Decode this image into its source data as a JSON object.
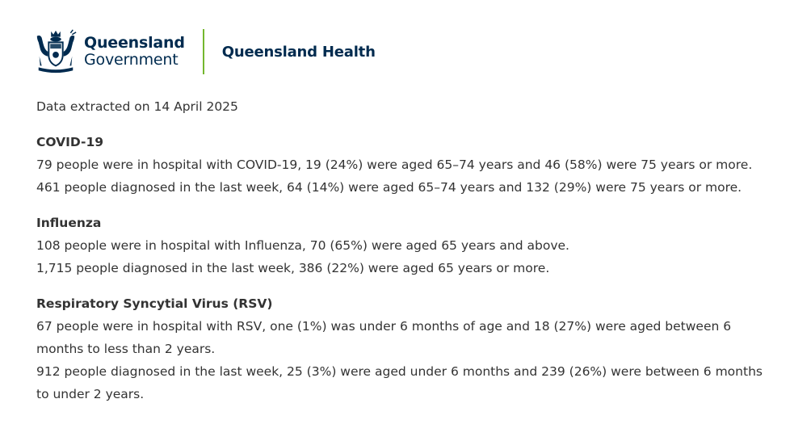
{
  "header": {
    "crest_icon": "queensland-coat-of-arms-icon",
    "gov_line1": "Queensland",
    "gov_line2": "Government",
    "department": "Queensland Health",
    "colors": {
      "navy": "#002b4f",
      "divider_green": "#74b72e"
    }
  },
  "extracted": "Data extracted on 14 April 2025",
  "sections": [
    {
      "heading": "COVID-19",
      "lines": [
        "79 people were in hospital with COVID-19, 19 (24%) were aged 65–74 years and 46 (58%) were 75 years or more.",
        "461 people diagnosed in the last week, 64 (14%) were aged 65–74 years and 132 (29%) were 75 years or more."
      ]
    },
    {
      "heading": "Influenza",
      "lines": [
        "108 people were in hospital with Influenza, 70 (65%) were aged 65 years and above.",
        "1,715 people diagnosed in the last week, 386 (22%) were aged 65 years or more."
      ]
    },
    {
      "heading": "Respiratory Syncytial Virus (RSV)",
      "lines": [
        "67 people were in hospital with RSV, one (1%) was under 6 months of age and 18 (27%) were aged between 6 months to less than 2 years.",
        "912 people diagnosed in the last week, 25 (3%) were aged under 6 months and 239 (26%) were between 6 months to under 2 years."
      ]
    }
  ]
}
